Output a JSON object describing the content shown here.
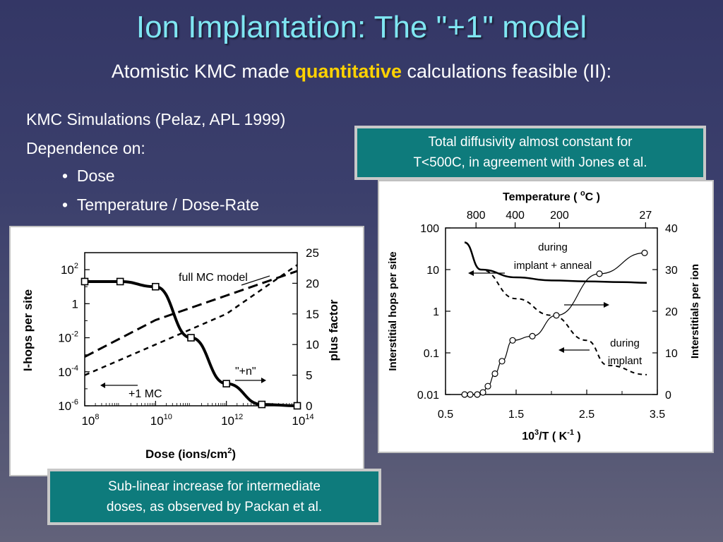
{
  "slide": {
    "title": "Ion Implantation: The \"+1\" model",
    "subtitle_pre": "Atomistic KMC made ",
    "subtitle_highlight": "quantitative",
    "subtitle_post": " calculations feasible (II):",
    "lines": [
      "KMC Simulations (Pelaz, APL 1999)",
      "Dependence on:"
    ],
    "bullets": [
      "Dose",
      "Temperature / Dose-Rate"
    ],
    "callout_right_1": "Total diffusivity almost constant for",
    "callout_right_2": "T<500C, in agreement with Jones et al.",
    "callout_bottom_1": "Sub-linear increase for intermediate",
    "callout_bottom_2": "doses, as observed by Packan et al."
  },
  "colors": {
    "title": "#7fe6f2",
    "highlight": "#ffd200",
    "callout_bg": "#0e7b7c"
  },
  "left_chart": {
    "ylabel_left": "I-hops per site",
    "ylabel_right": "plus factor",
    "xlabel": "Dose (ions/cm",
    "xlabel_sup": "2",
    "xlabel_end": ")",
    "y_left_ticks": [
      {
        "base": "10",
        "exp": "2",
        "v": 2
      },
      {
        "base": "1",
        "exp": "",
        "v": 0
      },
      {
        "base": "10",
        "exp": "-2",
        "v": -2
      },
      {
        "base": "10",
        "exp": "-4",
        "v": -4
      },
      {
        "base": "10",
        "exp": "-6",
        "v": -6
      }
    ],
    "y_right_ticks": [
      "25",
      "20",
      "15",
      "10",
      "5",
      "0"
    ],
    "x_ticks": [
      {
        "base": "10",
        "exp": "8",
        "v": 8
      },
      {
        "base": "10",
        "exp": "10",
        "v": 10
      },
      {
        "base": "10",
        "exp": "12",
        "v": 12
      },
      {
        "base": "10",
        "exp": "14",
        "v": 14
      }
    ],
    "annotations": {
      "full_mc": "full MC model",
      "plus_n": "\"+n\"",
      "plus_one": "+1 MC"
    }
  },
  "right_chart": {
    "top_axis_title": "Temperature ( ",
    "top_axis_deg": "o",
    "top_axis_unit": "C )",
    "top_ticks": [
      "800",
      "400",
      "200",
      "27"
    ],
    "ylabel_left": "Interstitial hops per site",
    "ylabel_right": "Interstitials per ion",
    "y_left_ticks": [
      "100",
      "10",
      "1",
      "0.1",
      "0.01"
    ],
    "y_right_ticks": [
      "40",
      "30",
      "20",
      "10",
      "0"
    ],
    "x_ticks": [
      "0.5",
      "1.5",
      "2.5",
      "3.5"
    ],
    "xlabel_a": "10",
    "xlabel_sup": "3",
    "xlabel_b": "/T ( K",
    "xlabel_sup2": "-1",
    "xlabel_c": " )",
    "annotations": {
      "during_anneal_1": "during",
      "during_anneal_2": "implant + anneal",
      "during_implant_1": "during",
      "during_implant_2": "implant"
    }
  },
  "chart_data": [
    {
      "type": "line",
      "xlabel": "Dose (ions/cm2)",
      "ylabel": "I-hops per site",
      "y2label": "plus factor",
      "x_scale": "log",
      "xlim": [
        100000000.0,
        100000000000000.0
      ],
      "y_scale": "log",
      "ylim": [
        1e-06,
        1000.0
      ],
      "y2lim": [
        0,
        25
      ],
      "series": [
        {
          "name": "I-hops per site",
          "x": [
            100000000.0,
            1000000000.0,
            10000000000.0,
            100000000000.0,
            1000000000000.0,
            10000000000000.0,
            100000000000000.0
          ],
          "y": [
            20,
            20,
            10,
            0.01,
            2e-05,
            1.2e-06,
            1e-06
          ]
        },
        {
          "name": "full MC model",
          "axis": "right",
          "x": [
            100000000.0,
            10000000000.0,
            1000000000000.0,
            100000000000000.0
          ],
          "y": [
            8,
            14,
            18,
            22
          ]
        },
        {
          "name": "\"+n\"",
          "axis": "right",
          "x": [
            100000000.0,
            10000000000.0,
            1000000000000.0,
            100000000000000.0
          ],
          "y": [
            5,
            10,
            15,
            23
          ]
        }
      ]
    },
    {
      "type": "line",
      "xlabel": "10^3/T (K^-1)",
      "ylabel": "Interstitial hops per site",
      "y2label": "Interstitials per ion",
      "xlim": [
        0.5,
        3.5
      ],
      "y_scale": "log",
      "ylim": [
        0.01,
        100
      ],
      "y2lim": [
        0,
        40
      ],
      "series": [
        {
          "name": "during implant + anneal",
          "x": [
            0.77,
            1.0,
            1.5,
            2.0,
            2.5,
            3.0,
            3.35
          ],
          "y": [
            45,
            10,
            6.5,
            5.5,
            5.2,
            5,
            4.8
          ]
        },
        {
          "name": "during implant",
          "x": [
            0.77,
            1.0,
            1.5,
            2.0,
            2.5,
            2.8,
            3.35
          ],
          "y": [
            45,
            10,
            2,
            0.8,
            0.2,
            0.05,
            0.03
          ]
        },
        {
          "name": "Interstitials per ion",
          "axis": "right",
          "x": [
            0.77,
            0.85,
            0.95,
            1.03,
            1.1,
            1.2,
            1.3,
            1.45,
            1.73,
            2.07,
            2.68,
            3.32
          ],
          "y": [
            0,
            0,
            0,
            0.5,
            2,
            5,
            8,
            13,
            14,
            19,
            29,
            34
          ]
        }
      ]
    }
  ]
}
